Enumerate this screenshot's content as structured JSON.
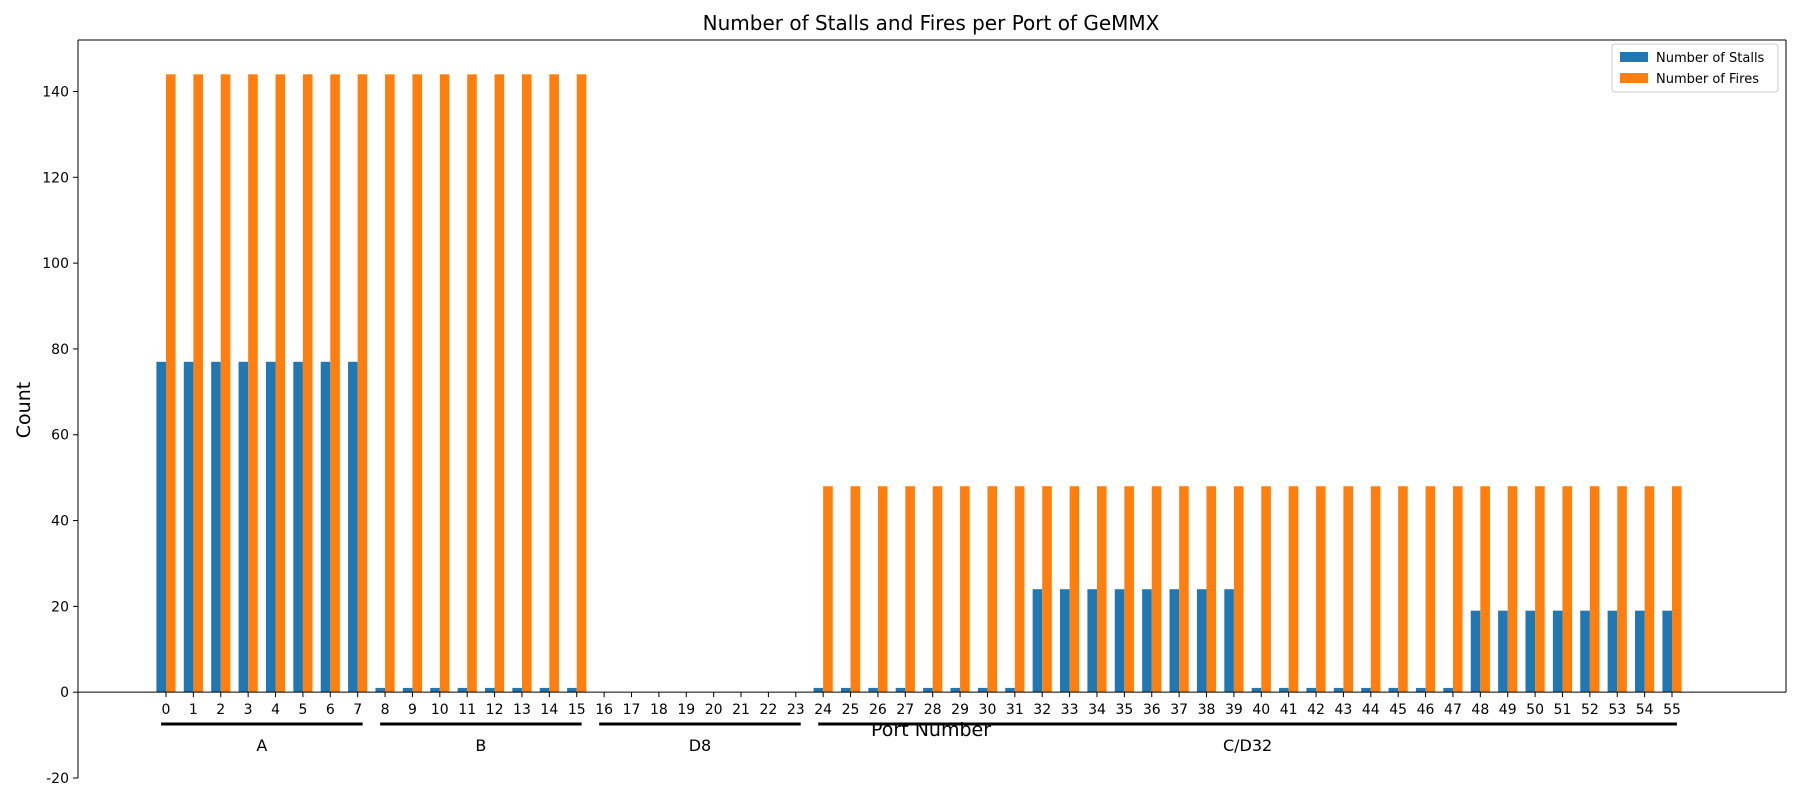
{
  "chart_data": {
    "type": "bar",
    "title": "Number of Stalls and Fires per Port of GeMMX",
    "xlabel": "Port Number",
    "ylabel": "Count",
    "ylim": [
      -20,
      152
    ],
    "yticks": [
      -20,
      0,
      20,
      40,
      60,
      80,
      100,
      120,
      140
    ],
    "grid": false,
    "legend_position": "top-right",
    "categories": [
      "0",
      "1",
      "2",
      "3",
      "4",
      "5",
      "6",
      "7",
      "8",
      "9",
      "10",
      "11",
      "12",
      "13",
      "14",
      "15",
      "16",
      "17",
      "18",
      "19",
      "20",
      "21",
      "22",
      "23",
      "24",
      "25",
      "26",
      "27",
      "28",
      "29",
      "30",
      "31",
      "32",
      "33",
      "34",
      "35",
      "36",
      "37",
      "38",
      "39",
      "40",
      "41",
      "42",
      "43",
      "44",
      "45",
      "46",
      "47",
      "48",
      "49",
      "50",
      "51",
      "52",
      "53",
      "54",
      "55"
    ],
    "series": [
      {
        "name": "Number of Stalls",
        "color": "#1f77b4",
        "values": [
          77,
          77,
          77,
          77,
          77,
          77,
          77,
          77,
          1,
          1,
          1,
          1,
          1,
          1,
          1,
          1,
          0,
          0,
          0,
          0,
          0,
          0,
          0,
          0,
          1,
          1,
          1,
          1,
          1,
          1,
          1,
          1,
          24,
          24,
          24,
          24,
          24,
          24,
          24,
          24,
          1,
          1,
          1,
          1,
          1,
          1,
          1,
          1,
          19,
          19,
          19,
          19,
          19,
          19,
          19,
          19
        ]
      },
      {
        "name": "Number of Fires",
        "color": "#ff7f0e",
        "values": [
          144,
          144,
          144,
          144,
          144,
          144,
          144,
          144,
          144,
          144,
          144,
          144,
          144,
          144,
          144,
          144,
          0,
          0,
          0,
          0,
          0,
          0,
          0,
          0,
          48,
          48,
          48,
          48,
          48,
          48,
          48,
          48,
          48,
          48,
          48,
          48,
          48,
          48,
          48,
          48,
          48,
          48,
          48,
          48,
          48,
          48,
          48,
          48,
          48,
          48,
          48,
          48,
          48,
          48,
          48,
          48
        ]
      }
    ],
    "groups": [
      {
        "label": "A",
        "start": 0,
        "end": 7
      },
      {
        "label": "B",
        "start": 8,
        "end": 15
      },
      {
        "label": "D8",
        "start": 16,
        "end": 23
      },
      {
        "label": "C/D32",
        "start": 24,
        "end": 55
      }
    ]
  }
}
